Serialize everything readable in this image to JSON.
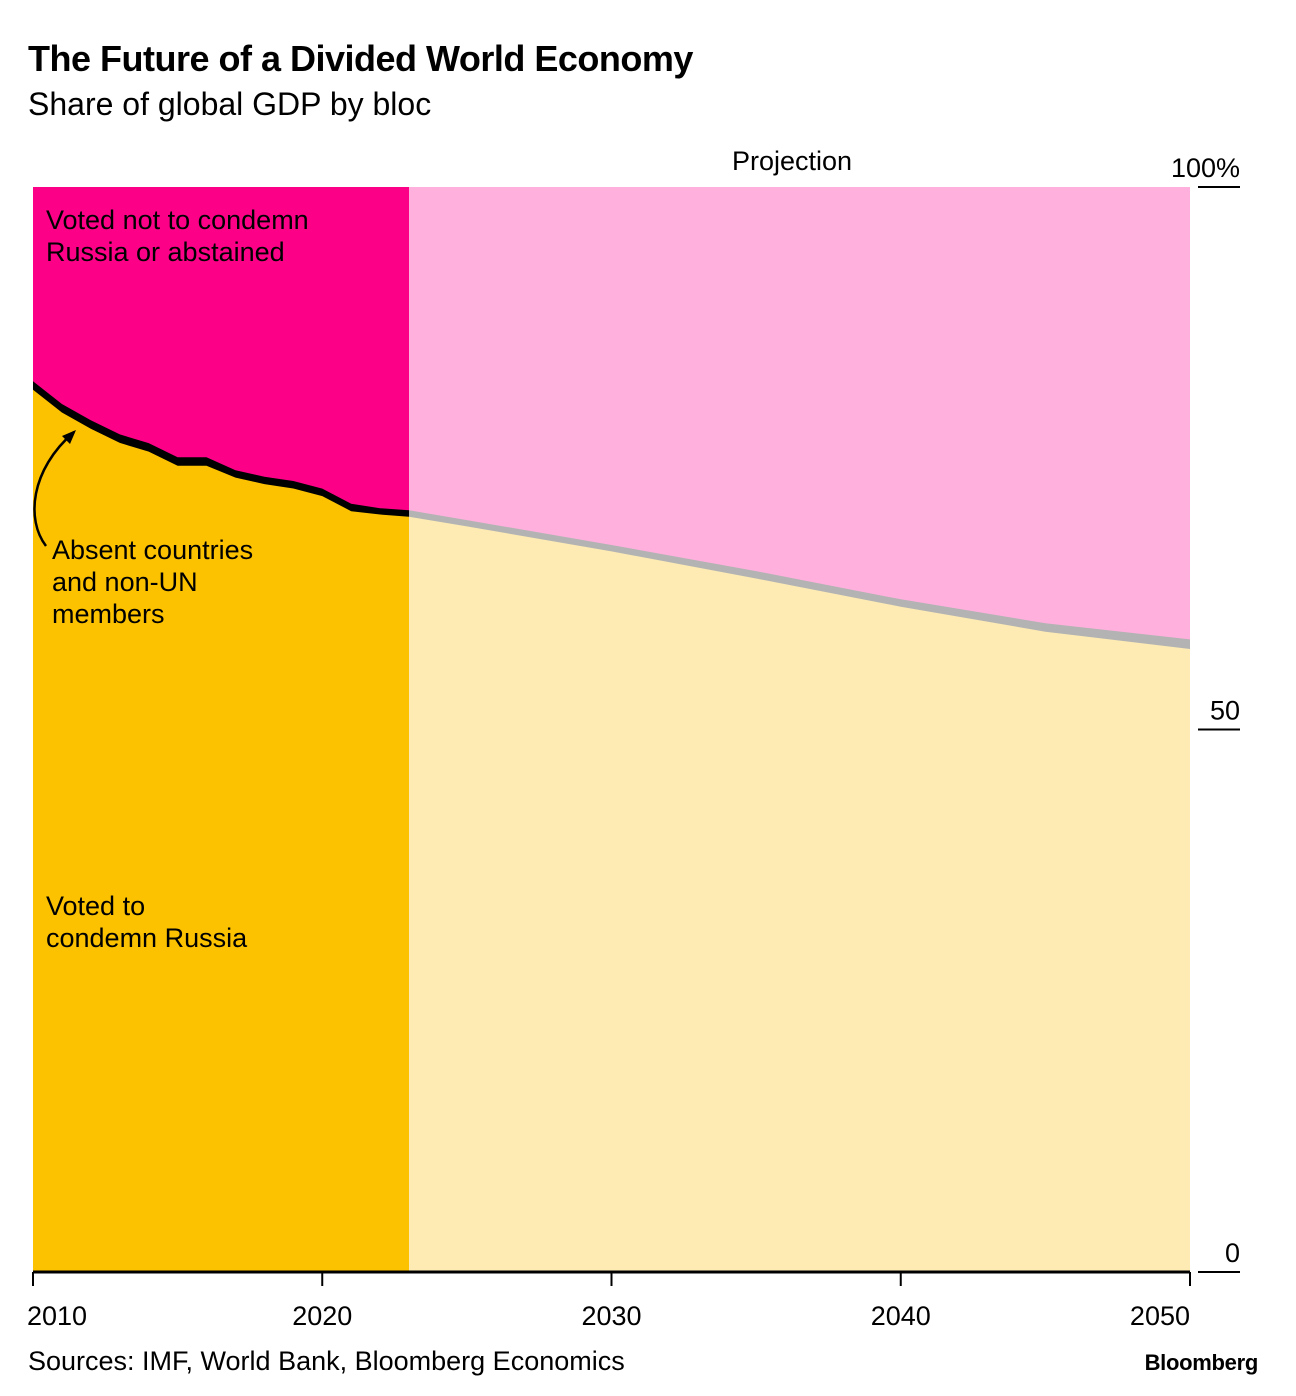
{
  "title": "The Future of a Divided World Economy",
  "subtitle": "Share of global GDP by bloc",
  "source": "Sources: IMF, World Bank, Bloomberg Economics",
  "brand": "Bloomberg",
  "colors": {
    "condemn_actual": "#fcc200",
    "condemn_projection": "#fdebb3",
    "not_condemn_actual": "#fd0088",
    "not_condemn_projection": "#ffb0dd",
    "absent_actual": "#000000",
    "absent_projection": "#b3b3b3",
    "axis": "#000000"
  },
  "chart_data": {
    "type": "area",
    "stacked": true,
    "normalized": true,
    "title": "The Future of a Divided World Economy",
    "subtitle": "Share of global GDP by bloc",
    "xlim": [
      2010,
      2050
    ],
    "ylim": [
      0,
      100
    ],
    "x_ticks": [
      2010,
      2020,
      2030,
      2040,
      2050
    ],
    "x_tick_labels": [
      "2010",
      "2020",
      "2030",
      "2040",
      "2050"
    ],
    "y_ticks": [
      0,
      50,
      100
    ],
    "y_tick_labels": [
      "0",
      "50",
      "100%"
    ],
    "projection_start": 2023,
    "projection_label": "Projection",
    "series_labels": {
      "condemn": "Voted to condemn Russia",
      "absent": "Absent countries and non-UN members",
      "not_condemn": "Voted not to condemn Russia or abstained"
    },
    "condemn_label_lines": [
      "Voted to",
      "condemn Russia"
    ],
    "absent_label_lines": [
      "Absent countries",
      "and non-UN",
      "members"
    ],
    "not_condemn_label_lines": [
      "Voted not to condemn",
      "Russia or abstained"
    ],
    "years": [
      2010,
      2011,
      2012,
      2013,
      2014,
      2015,
      2016,
      2017,
      2018,
      2019,
      2020,
      2021,
      2022,
      2023,
      2025,
      2030,
      2035,
      2040,
      2045,
      2050
    ],
    "series": [
      {
        "name": "Voted to condemn Russia",
        "values": [
          81.5,
          79.4,
          77.9,
          76.6,
          75.8,
          74.5,
          74.5,
          73.4,
          72.8,
          72.4,
          71.7,
          70.3,
          70.0,
          69.8,
          68.9,
          66.6,
          64.1,
          61.5,
          59.2,
          57.6
        ]
      },
      {
        "name": "Absent countries and non-UN members",
        "values": [
          0.6,
          0.6,
          0.6,
          0.6,
          0.6,
          0.6,
          0.6,
          0.5,
          0.5,
          0.5,
          0.5,
          0.5,
          0.4,
          0.4,
          0.4,
          0.4,
          0.5,
          0.5,
          0.6,
          0.7
        ]
      },
      {
        "name": "Voted not to condemn Russia or abstained",
        "values": [
          17.9,
          20.0,
          21.5,
          22.8,
          23.6,
          24.9,
          24.9,
          26.1,
          26.7,
          27.1,
          27.8,
          29.2,
          29.6,
          29.8,
          30.7,
          33.0,
          35.4,
          38.0,
          40.2,
          41.7
        ]
      }
    ]
  }
}
